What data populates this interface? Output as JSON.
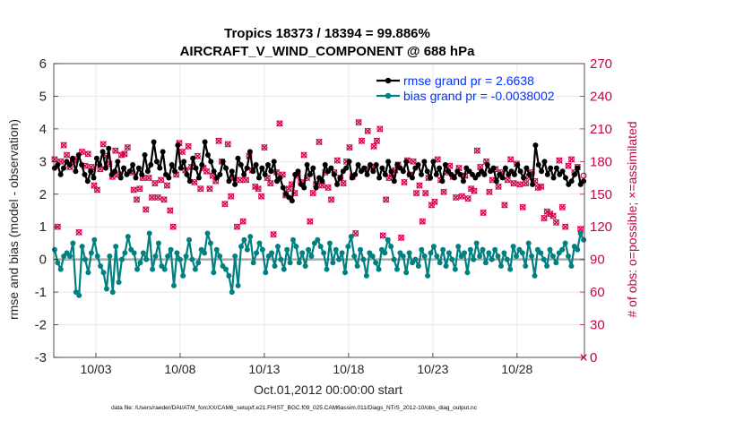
{
  "chart_data": {
    "type": "line",
    "title": "Tropics 18373 / 18394 = 99.886%",
    "subtitle": "AIRCRAFT_V_WIND_COMPONENT @ 688 hPa",
    "xlabel": "Oct.01,2012 00:00:00 start",
    "ylabel": "rmse and bias (model - observation)",
    "y2label": "# of obs: o=possible; ×=assimilated",
    "xlim": [
      0.5,
      32.0
    ],
    "ylim": [
      -3,
      6
    ],
    "y2lim": [
      0,
      270
    ],
    "x_ticks": [
      3,
      8,
      13,
      18,
      23,
      28
    ],
    "x_tick_labels": [
      "10/03",
      "10/08",
      "10/13",
      "10/18",
      "10/23",
      "10/28"
    ],
    "y_ticks": [
      -3,
      -2,
      -1,
      0,
      1,
      2,
      3,
      4,
      5,
      6
    ],
    "y_tick_labels": [
      "-3",
      "-2",
      "-1",
      "0",
      "1",
      "2",
      "3",
      "4",
      "5",
      "6"
    ],
    "y2_ticks": [
      0,
      30,
      60,
      90,
      120,
      150,
      180,
      210,
      240,
      270
    ],
    "y2_tick_labels": [
      "0",
      "30",
      "60",
      "90",
      "120",
      "150",
      "180",
      "210",
      "240",
      "270"
    ],
    "colors": {
      "rmse": "#000000",
      "bias": "#008080",
      "obs": "#d6004f",
      "zero_line": "#aaaaaa",
      "grid": "#e0e0e0"
    },
    "legend_position": "top-right",
    "series": [
      {
        "name": "rmse grand pr = 2.6638",
        "values": [
          2.8,
          2.9,
          2.6,
          2.8,
          3.0,
          2.9,
          3.1,
          2.7,
          3.2,
          2.9,
          2.6,
          2.4,
          2.7,
          2.5,
          3.1,
          2.9,
          3.3,
          2.8,
          3.4,
          2.6,
          2.7,
          3.0,
          2.5,
          2.8,
          2.6,
          2.7,
          2.9,
          2.5,
          2.8,
          2.6,
          3.2,
          2.7,
          2.9,
          3.6,
          3.0,
          2.8,
          3.3,
          2.6,
          2.5,
          2.9,
          2.7,
          3.5,
          2.8,
          3.0,
          2.6,
          2.4,
          3.1,
          2.8,
          2.5,
          2.9,
          3.6,
          3.2,
          3.0,
          2.7,
          2.5,
          2.6,
          3.0,
          2.8,
          2.4,
          2.7,
          2.3,
          3.1,
          2.9,
          2.6,
          2.8,
          3.3,
          2.7,
          2.9,
          2.5,
          2.8,
          2.6,
          2.9,
          2.7,
          3.0,
          2.4,
          2.5,
          2.2,
          2.0,
          1.9,
          1.8,
          2.6,
          2.7,
          2.3,
          2.2,
          2.9,
          2.6,
          2.8,
          2.2,
          2.5,
          2.4,
          2.9,
          2.7,
          2.8,
          2.6,
          2.3,
          2.5,
          2.7,
          2.8,
          3.0,
          2.5,
          2.6,
          2.9,
          2.7,
          2.8,
          2.6,
          2.9,
          2.7,
          2.9,
          2.5,
          2.8,
          2.6,
          3.0,
          2.7,
          2.4,
          2.9,
          2.8,
          2.7,
          3.0,
          2.6,
          2.5,
          2.8,
          2.9,
          2.6,
          3.0,
          2.7,
          2.5,
          3.0,
          2.6,
          2.8,
          2.4,
          2.9,
          2.7,
          2.6,
          2.5,
          2.7,
          2.6,
          2.4,
          2.8,
          2.7,
          2.6,
          2.5,
          2.6,
          2.7,
          2.6,
          2.9,
          2.7,
          2.8,
          2.4,
          2.6,
          2.5,
          2.8,
          2.6,
          2.7,
          2.6,
          2.9,
          2.7,
          2.5,
          2.8,
          2.6,
          2.3,
          3.5,
          2.9,
          2.7,
          3.0,
          2.6,
          2.8,
          2.5,
          2.8,
          2.6,
          2.7,
          2.5,
          2.3,
          2.4,
          2.6,
          2.8,
          2.3,
          2.4
        ]
      },
      {
        "name": "bias grand pr = -0.0038002",
        "values": [
          0.3,
          -0.1,
          -0.3,
          0.1,
          0.2,
          0.1,
          0.5,
          -1.0,
          -1.1,
          0.4,
          0.0,
          -0.4,
          0.2,
          0.6,
          0.1,
          -0.2,
          -0.4,
          -0.9,
          0.1,
          -1.0,
          0.4,
          -0.7,
          0.0,
          0.2,
          0.7,
          0.3,
          0.2,
          -0.3,
          -0.1,
          0.2,
          0.0,
          0.8,
          -0.3,
          0.1,
          0.5,
          -0.2,
          -0.3,
          0.1,
          0.3,
          -0.8,
          0.2,
          0.0,
          -0.5,
          0.1,
          0.6,
          0.0,
          -0.3,
          -0.1,
          0.3,
          0.2,
          0.8,
          0.5,
          -0.4,
          0.3,
          0.1,
          -0.2,
          -0.3,
          -0.5,
          -1.0,
          0.1,
          -0.8,
          0.4,
          0.6,
          0.3,
          0.7,
          -0.1,
          0.2,
          0.5,
          0.3,
          -0.4,
          0.1,
          0.2,
          -0.2,
          0.4,
          0.0,
          -0.3,
          0.3,
          -0.1,
          0.6,
          0.4,
          -0.1,
          0.2,
          -0.2,
          0.3,
          0.1,
          0.5,
          0.6,
          0.4,
          0.2,
          -0.3,
          0.5,
          -0.1,
          0.3,
          0.0,
          0.2,
          -0.4,
          0.4,
          0.7,
          0.1,
          -0.2,
          0.3,
          0.0,
          -0.5,
          0.2,
          0.1,
          -0.1,
          -0.3,
          0.3,
          0.2,
          0.6,
          0.4,
          0.0,
          -0.3,
          0.2,
          0.1,
          -0.4,
          0.2,
          -0.1,
          0.0,
          -0.2,
          0.3,
          0.1,
          -0.5,
          0.2,
          0.4,
          0.1,
          -0.1,
          0.3,
          -0.2,
          0.2,
          0.0,
          -0.3,
          0.4,
          0.1,
          0.2,
          -0.4,
          0.3,
          0.0,
          0.5,
          0.1,
          0.3,
          -0.1,
          0.2,
          0.0,
          0.3,
          0.1,
          -0.2,
          0.2,
          0.0,
          -0.3,
          0.4,
          0.1,
          0.3,
          0.2,
          -0.2,
          0.5,
          0.1,
          -0.5,
          0.3,
          0.2,
          0.0,
          -0.2,
          0.3,
          0.1,
          -0.1,
          0.2,
          0.3,
          0.5,
          0.1,
          -0.2,
          0.4,
          0.3,
          0.8,
          0.6
        ]
      },
      {
        "name": "# of obs possible",
        "values": [
          182,
          120,
          180,
          195,
          186,
          175,
          181,
          182,
          115,
          189,
          176,
          187,
          175,
          158,
          154,
          173,
          196,
          185,
          178,
          166,
          190,
          168,
          186,
          187,
          193,
          170,
          154,
          145,
          155,
          165,
          136,
          165,
          147,
          160,
          147,
          163,
          145,
          158,
          135,
          120,
          168,
          197,
          189,
          172,
          194,
          175,
          161,
          185,
          155,
          174,
          171,
          155,
          167,
          162,
          199,
          180,
          141,
          196,
          148,
          165,
          120,
          163,
          125,
          163,
          185,
          172,
          157,
          155,
          148,
          193,
          165,
          160,
          113,
          170,
          215,
          168,
          149,
          155,
          159,
          151,
          167,
          161,
          186,
          165,
          125,
          151,
          159,
          198,
          158,
          170,
          156,
          145,
          170,
          181,
          165,
          160,
          180,
          193,
          166,
          114,
          216,
          199,
          173,
          208,
          175,
          194,
          199,
          210,
          112,
          145,
          165,
          169,
          172,
          177,
          110,
          161,
          181,
          168,
          180,
          151,
          158,
          125,
          151,
          165,
          140,
          143,
          182,
          163,
          152,
          170,
          176,
          166,
          147,
          174,
          148,
          167,
          146,
          155,
          153,
          190,
          175,
          133,
          180,
          152,
          163,
          173,
          157,
          170,
          140,
          163,
          182,
          160,
          178,
          159,
          138,
          160,
          166,
          170,
          162,
          156,
          157,
          128,
          134,
          132,
          130,
          124,
          181,
          138,
          120,
          176,
          182,
          170,
          175,
          118,
          167
        ]
      },
      {
        "name": "# of obs assimilated",
        "values": [
          182,
          120,
          180,
          195,
          186,
          175,
          181,
          182,
          115,
          189,
          176,
          187,
          175,
          158,
          154,
          173,
          196,
          185,
          178,
          166,
          190,
          168,
          186,
          187,
          193,
          170,
          154,
          145,
          155,
          165,
          136,
          165,
          147,
          160,
          147,
          163,
          145,
          158,
          135,
          120,
          168,
          197,
          189,
          172,
          194,
          175,
          161,
          185,
          155,
          174,
          171,
          155,
          167,
          162,
          199,
          180,
          141,
          196,
          148,
          165,
          120,
          163,
          125,
          163,
          185,
          172,
          157,
          155,
          148,
          193,
          165,
          160,
          113,
          170,
          215,
          168,
          149,
          155,
          159,
          151,
          167,
          161,
          186,
          165,
          125,
          151,
          159,
          198,
          158,
          170,
          156,
          145,
          170,
          181,
          165,
          160,
          180,
          193,
          166,
          114,
          216,
          199,
          173,
          208,
          175,
          194,
          199,
          210,
          112,
          145,
          165,
          169,
          172,
          177,
          110,
          161,
          181,
          168,
          180,
          151,
          158,
          125,
          151,
          165,
          140,
          143,
          182,
          163,
          152,
          170,
          176,
          166,
          147,
          174,
          148,
          167,
          146,
          155,
          153,
          190,
          175,
          133,
          180,
          152,
          163,
          173,
          157,
          170,
          140,
          163,
          182,
          160,
          178,
          159,
          138,
          160,
          166,
          170,
          162,
          156,
          157,
          128,
          134,
          132,
          130,
          124,
          181,
          138,
          120,
          176,
          182,
          170,
          175,
          118,
          0
        ]
      }
    ],
    "legend": [
      "rmse grand pr = 2.6638",
      "bias grand pr = -0.0038002"
    ]
  },
  "footer": {
    "data_file": "data file: /Users/raeder/DAI/ATM_forcXX/CAM6_setup/f.e21.FHIST_BGC.f09_025.CAM6assim.011/Diags_NTrS_2012-10/obs_diag_output.nc"
  }
}
